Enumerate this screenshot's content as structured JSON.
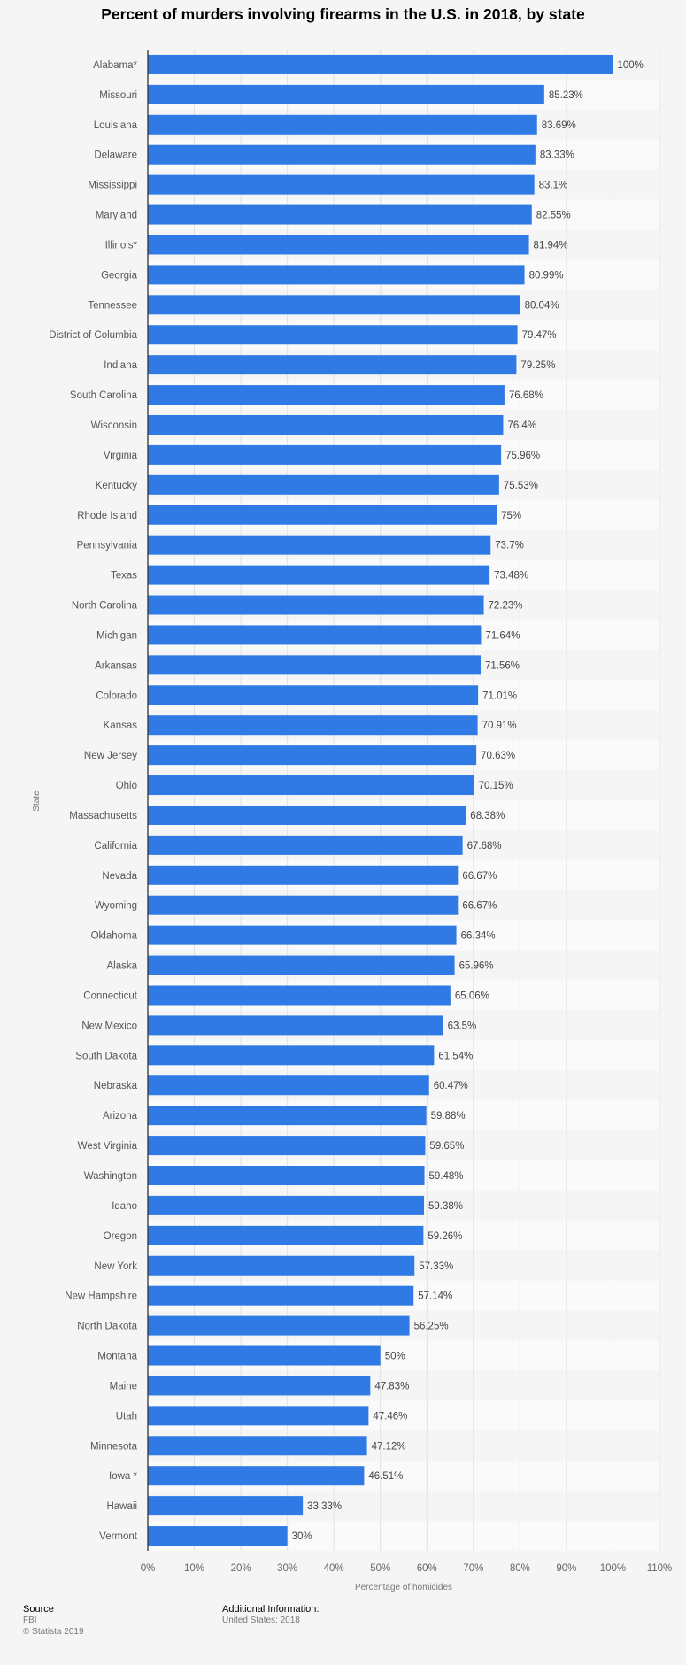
{
  "title": "Percent of murders involving firearms in the U.S. in 2018, by state",
  "chart_data": {
    "type": "bar",
    "orientation": "horizontal",
    "title": "Percent of murders involving firearms in the U.S. in 2018, by state",
    "xlabel": "Percentage of homicides",
    "ylabel": "State",
    "xlim": [
      0,
      110
    ],
    "xticks": [
      "0%",
      "10%",
      "20%",
      "30%",
      "40%",
      "50%",
      "60%",
      "70%",
      "80%",
      "90%",
      "100%",
      "110%"
    ],
    "grid": true,
    "bar_color": "#2f7ae5",
    "categories": [
      "Alabama*",
      "Missouri",
      "Louisiana",
      "Delaware",
      "Mississippi",
      "Maryland",
      "Illinois*",
      "Georgia",
      "Tennessee",
      "District of Columbia",
      "Indiana",
      "South Carolina",
      "Wisconsin",
      "Virginia",
      "Kentucky",
      "Rhode Island",
      "Pennsylvania",
      "Texas",
      "North Carolina",
      "Michigan",
      "Arkansas",
      "Colorado",
      "Kansas",
      "New Jersey",
      "Ohio",
      "Massachusetts",
      "California",
      "Nevada",
      "Wyoming",
      "Oklahoma",
      "Alaska",
      "Connecticut",
      "New Mexico",
      "South Dakota",
      "Nebraska",
      "Arizona",
      "West Virginia",
      "Washington",
      "Idaho",
      "Oregon",
      "New York",
      "New Hampshire",
      "North Dakota",
      "Montana",
      "Maine",
      "Utah",
      "Minnesota",
      "Iowa *",
      "Hawaii",
      "Vermont"
    ],
    "values": [
      100,
      85.23,
      83.69,
      83.33,
      83.1,
      82.55,
      81.94,
      80.99,
      80.04,
      79.47,
      79.25,
      76.68,
      76.4,
      75.96,
      75.53,
      75,
      73.7,
      73.48,
      72.23,
      71.64,
      71.56,
      71.01,
      70.91,
      70.63,
      70.15,
      68.38,
      67.68,
      66.67,
      66.67,
      66.34,
      65.96,
      65.06,
      63.5,
      61.54,
      60.47,
      59.88,
      59.65,
      59.48,
      59.38,
      59.26,
      57.33,
      57.14,
      56.25,
      50,
      47.83,
      47.46,
      47.12,
      46.51,
      33.33,
      30
    ],
    "value_labels": [
      "100%",
      "85.23%",
      "83.69%",
      "83.33%",
      "83.1%",
      "82.55%",
      "81.94%",
      "80.99%",
      "80.04%",
      "79.47%",
      "79.25%",
      "76.68%",
      "76.4%",
      "75.96%",
      "75.53%",
      "75%",
      "73.7%",
      "73.48%",
      "72.23%",
      "71.64%",
      "71.56%",
      "71.01%",
      "70.91%",
      "70.63%",
      "70.15%",
      "68.38%",
      "67.68%",
      "66.67%",
      "66.67%",
      "66.34%",
      "65.96%",
      "65.06%",
      "63.5%",
      "61.54%",
      "60.47%",
      "59.88%",
      "59.65%",
      "59.48%",
      "59.38%",
      "59.26%",
      "57.33%",
      "57.14%",
      "56.25%",
      "50%",
      "47.83%",
      "47.46%",
      "47.12%",
      "46.51%",
      "33.33%",
      "30%"
    ]
  },
  "footer": {
    "source_heading": "Source",
    "source_name": "FBI",
    "copyright": "© Statista 2019",
    "info_heading": "Additional Information:",
    "info_text": "United States; 2018"
  }
}
